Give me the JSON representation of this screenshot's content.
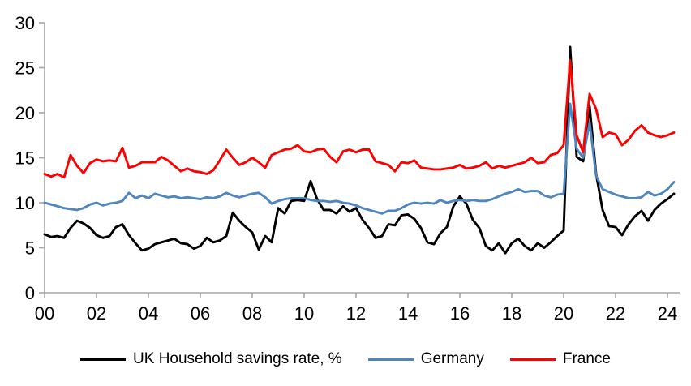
{
  "chart_data": {
    "type": "line",
    "title": "",
    "xlabel": "",
    "ylabel": "",
    "grid": false,
    "legend_position": "bottom",
    "x_start_year": 2000,
    "x_step_years": 0.25,
    "xlim": [
      2000,
      2024.5
    ],
    "ylim": [
      0,
      30
    ],
    "y_ticks": [
      0,
      5,
      10,
      15,
      20,
      25,
      30
    ],
    "x_tick_years": [
      2000,
      2002,
      2004,
      2006,
      2008,
      2010,
      2012,
      2014,
      2016,
      2018,
      2020,
      2022,
      2024
    ],
    "x_tick_labels": [
      "00",
      "02",
      "04",
      "06",
      "08",
      "10",
      "12",
      "14",
      "16",
      "18",
      "20",
      "22",
      "24"
    ],
    "axis_color": "#a6a6a6",
    "text_color": "#000000",
    "series": [
      {
        "id": "uk",
        "name": "UK Household savings rate, %",
        "color": "#000000",
        "values": [
          6.5,
          6.2,
          6.3,
          6.1,
          7.2,
          8.0,
          7.7,
          7.2,
          6.4,
          6.1,
          6.3,
          7.3,
          7.6,
          6.4,
          5.5,
          4.7,
          4.9,
          5.4,
          5.6,
          5.8,
          6.0,
          5.5,
          5.4,
          4.9,
          5.2,
          6.1,
          5.6,
          5.8,
          6.3,
          8.9,
          8.0,
          7.3,
          6.7,
          4.8,
          6.3,
          5.6,
          9.4,
          8.8,
          10.2,
          10.3,
          10.2,
          12.4,
          10.4,
          9.2,
          9.2,
          8.8,
          9.6,
          9.0,
          9.4,
          8.1,
          7.2,
          6.1,
          6.3,
          7.6,
          7.5,
          8.6,
          8.7,
          8.2,
          7.2,
          5.6,
          5.4,
          6.6,
          7.3,
          9.6,
          10.7,
          9.9,
          8.1,
          7.2,
          5.2,
          4.7,
          5.5,
          4.4,
          5.5,
          6.0,
          5.2,
          4.7,
          5.5,
          5.0,
          5.6,
          6.3,
          6.9,
          27.3,
          15.1,
          14.6,
          20.7,
          13.2,
          9.2,
          7.4,
          7.3,
          6.4,
          7.6,
          8.5,
          9.1,
          8.0,
          9.2,
          9.9,
          10.4,
          11.0
        ]
      },
      {
        "id": "germany",
        "name": "Germany",
        "color": "#4f86c0",
        "values": [
          10.0,
          9.8,
          9.6,
          9.4,
          9.3,
          9.2,
          9.4,
          9.8,
          10.0,
          9.7,
          9.9,
          10.0,
          10.2,
          11.1,
          10.5,
          10.8,
          10.5,
          11.0,
          10.8,
          10.6,
          10.7,
          10.5,
          10.6,
          10.5,
          10.4,
          10.6,
          10.5,
          10.7,
          11.1,
          10.8,
          10.6,
          10.8,
          11.0,
          11.1,
          10.6,
          9.9,
          10.2,
          10.4,
          10.5,
          10.5,
          10.5,
          10.3,
          10.2,
          10.2,
          10.1,
          10.2,
          10.0,
          9.9,
          9.7,
          9.4,
          9.2,
          9.0,
          8.8,
          9.1,
          9.1,
          9.4,
          9.8,
          10.0,
          9.9,
          10.0,
          9.9,
          10.3,
          10.0,
          10.2,
          10.3,
          10.2,
          10.3,
          10.2,
          10.2,
          10.4,
          10.7,
          11.0,
          11.2,
          11.5,
          11.2,
          11.3,
          11.3,
          10.8,
          10.6,
          10.9,
          11.0,
          21.0,
          16.0,
          15.0,
          18.9,
          13.0,
          11.5,
          11.2,
          10.9,
          10.7,
          10.5,
          10.5,
          10.6,
          11.2,
          10.8,
          11.0,
          11.5,
          12.3
        ]
      },
      {
        "id": "france",
        "name": "France",
        "color": "#ff0000",
        "values": [
          13.2,
          12.9,
          13.2,
          12.8,
          15.3,
          14.1,
          13.3,
          14.4,
          14.8,
          14.6,
          14.7,
          14.6,
          16.1,
          13.9,
          14.1,
          14.5,
          14.5,
          14.5,
          15.1,
          14.7,
          14.1,
          13.5,
          13.8,
          13.5,
          13.4,
          13.2,
          13.6,
          14.7,
          15.9,
          15.0,
          14.2,
          14.5,
          15.0,
          14.5,
          13.9,
          15.3,
          15.6,
          15.9,
          16.0,
          16.4,
          15.7,
          15.6,
          15.9,
          16.0,
          15.1,
          14.5,
          15.7,
          15.9,
          15.6,
          15.9,
          15.9,
          14.6,
          14.4,
          14.2,
          13.5,
          14.5,
          14.4,
          14.7,
          13.9,
          13.8,
          13.7,
          13.7,
          13.8,
          13.9,
          14.2,
          13.8,
          13.9,
          14.1,
          14.5,
          13.8,
          14.1,
          13.9,
          14.1,
          14.3,
          14.5,
          15.0,
          14.4,
          14.5,
          15.3,
          15.5,
          16.4,
          25.8,
          17.5,
          15.6,
          22.1,
          20.4,
          17.3,
          17.8,
          17.6,
          16.4,
          17.0,
          18.0,
          18.6,
          17.8,
          17.5,
          17.3,
          17.5,
          17.8
        ]
      }
    ]
  }
}
